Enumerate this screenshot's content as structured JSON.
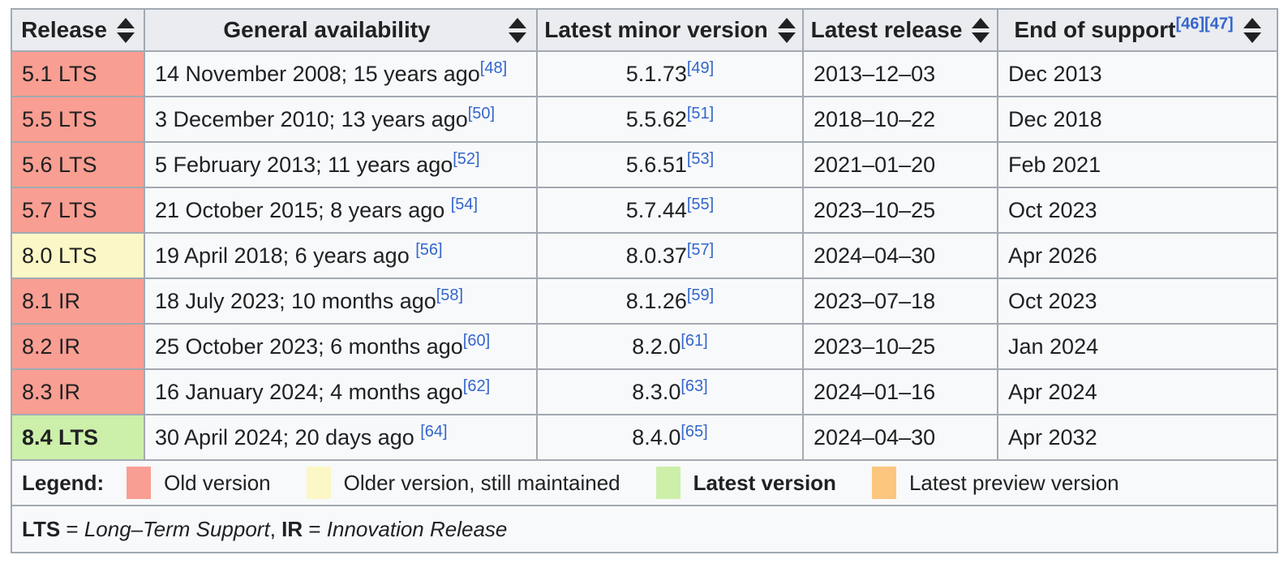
{
  "colors": {
    "old": "#f99e92",
    "maintained": "#fbf7c6",
    "latest": "#ccefaa",
    "preview": "#fcc67f",
    "header_bg": "#eaecf0",
    "cell_bg": "#f8f9fa",
    "border": "#a2a9b1",
    "link": "#3366cc"
  },
  "header": {
    "release": "Release",
    "ga": "General availability",
    "minor": "Latest minor version",
    "latest": "Latest release",
    "end": "End of support",
    "end_ref1": "[46]",
    "end_ref2": "[47]"
  },
  "rows": [
    {
      "release": "5.1 LTS",
      "status": "old",
      "ga": "14 November 2008; 15 years ago",
      "ga_ref": "[48]",
      "minor": "5.1.73",
      "minor_ref": "[49]",
      "latest": "2013–12–03",
      "end": "Dec 2013"
    },
    {
      "release": "5.5 LTS",
      "status": "old",
      "ga": "3 December 2010; 13 years ago",
      "ga_ref": "[50]",
      "minor": "5.5.62",
      "minor_ref": "[51]",
      "latest": "2018–10–22",
      "end": "Dec 2018"
    },
    {
      "release": "5.6 LTS",
      "status": "old",
      "ga": "5 February 2013; 11 years ago",
      "ga_ref": "[52]",
      "minor": "5.6.51",
      "minor_ref": "[53]",
      "latest": "2021–01–20",
      "end": "Feb 2021"
    },
    {
      "release": "5.7 LTS",
      "status": "old",
      "ga": "21 October 2015; 8 years ago ",
      "ga_ref": "[54]",
      "minor": "5.7.44",
      "minor_ref": "[55]",
      "latest": "2023–10–25",
      "end": "Oct 2023"
    },
    {
      "release": "8.0 LTS",
      "status": "maintained",
      "ga": "19 April 2018; 6 years ago ",
      "ga_ref": "[56]",
      "minor": "8.0.37",
      "minor_ref": "[57]",
      "latest": "2024–04–30",
      "end": "Apr 2026"
    },
    {
      "release": "8.1 IR",
      "status": "old",
      "ga": "18 July 2023; 10 months ago",
      "ga_ref": "[58]",
      "minor": "8.1.26",
      "minor_ref": "[59]",
      "latest": "2023–07–18",
      "end": "Oct 2023"
    },
    {
      "release": "8.2 IR",
      "status": "old",
      "ga": "25 October 2023; 6 months ago",
      "ga_ref": "[60]",
      "minor": "8.2.0",
      "minor_ref": "[61]",
      "latest": "2023–10–25",
      "end": "Jan 2024"
    },
    {
      "release": "8.3 IR",
      "status": "old",
      "ga": "16 January 2024; 4 months ago",
      "ga_ref": "[62]",
      "minor": "8.3.0",
      "minor_ref": "[63]",
      "latest": "2024–01–16",
      "end": "Apr 2024"
    },
    {
      "release": "8.4 LTS",
      "status": "latest",
      "ga": "30 April 2024; 20 days ago ",
      "ga_ref": "[64]",
      "minor": "8.4.0",
      "minor_ref": "[65]",
      "latest": "2024–04–30",
      "end": "Apr 2032"
    }
  ],
  "legend": {
    "title": "Legend:",
    "items": [
      {
        "label": "Old version",
        "color": "#f99e92"
      },
      {
        "label": "Older version, still maintained",
        "color": "#fbf7c6"
      },
      {
        "label": "Latest version",
        "color": "#ccefaa",
        "bold": true
      },
      {
        "label": "Latest preview version",
        "color": "#fcc67f"
      }
    ]
  },
  "note": {
    "lts_abbr": "LTS",
    "eq1": " = ",
    "lts_full": "Long–Term Support",
    "sep": ", ",
    "ir_abbr": "IR",
    "eq2": " = ",
    "ir_full": "Innovation Release"
  }
}
